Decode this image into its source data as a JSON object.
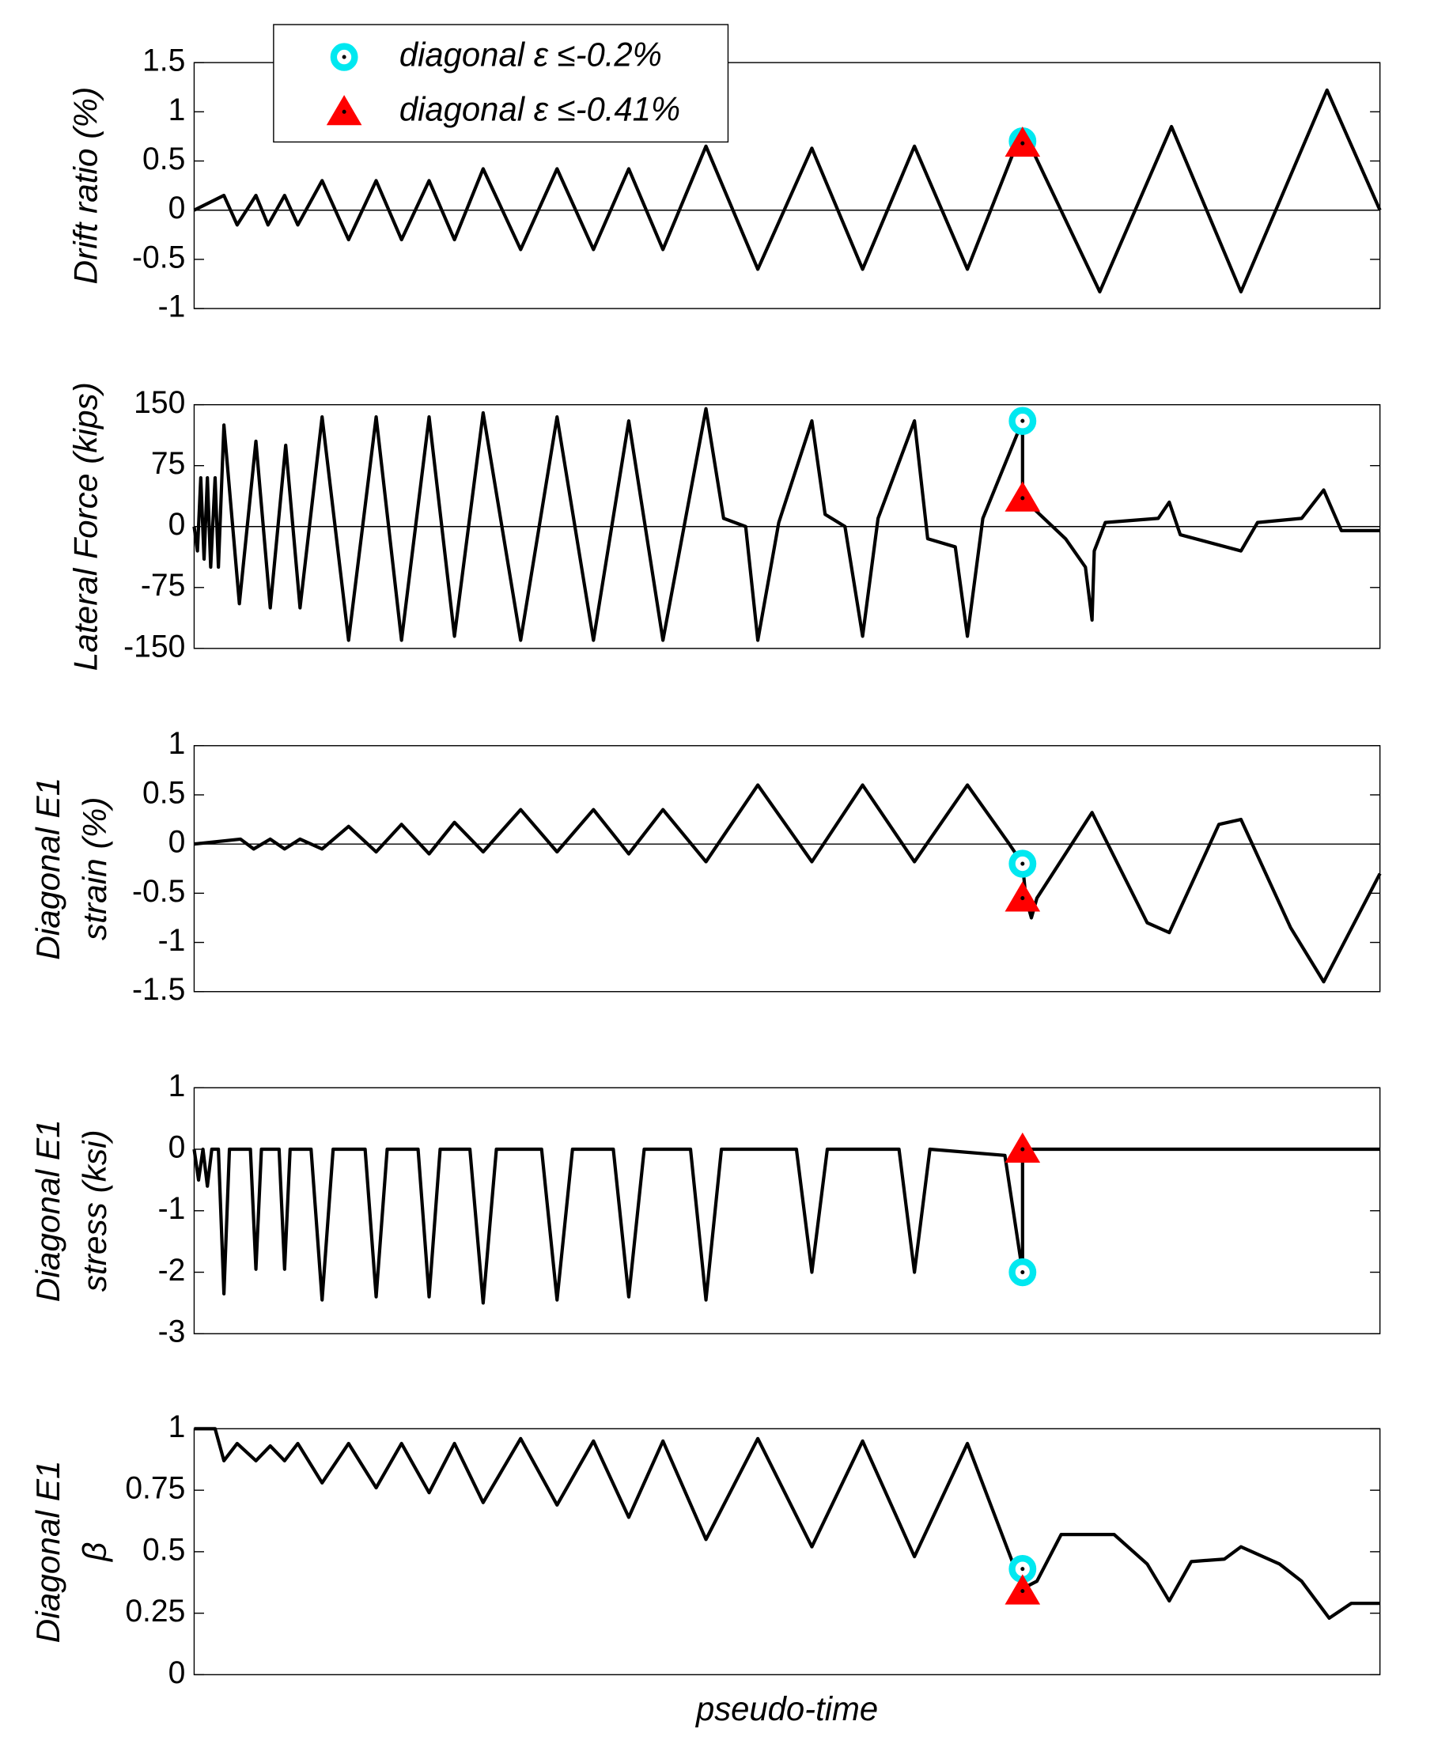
{
  "legend": [
    {
      "label": "diagonal ε ≤-0.2%",
      "marker": "circle",
      "color": "#00e8f0"
    },
    {
      "label": "diagonal ε ≤-0.41%",
      "marker": "triangle",
      "color": "#ff0000"
    }
  ],
  "chart_data": [
    {
      "type": "line",
      "ylabel": [
        "Drift ratio (%)"
      ],
      "color": "#000000",
      "zero_line": true,
      "xlim": [
        0,
        1075
      ],
      "ylim": [
        -1,
        1.5
      ],
      "yticks": [
        -1,
        -0.5,
        0,
        0.5,
        1,
        1.5
      ],
      "x": [
        0,
        27,
        39,
        56,
        67,
        82,
        94,
        116,
        140,
        165,
        188,
        213,
        236,
        262,
        296,
        329,
        362,
        394,
        425,
        464,
        511,
        560,
        606,
        653,
        701,
        751,
        821,
        886,
        949,
        1027,
        1075
      ],
      "values": [
        0,
        0.15,
        -0.15,
        0.15,
        -0.15,
        0.15,
        -0.15,
        0.3,
        -0.3,
        0.3,
        -0.3,
        0.3,
        -0.3,
        0.42,
        -0.4,
        0.42,
        -0.4,
        0.42,
        -0.4,
        0.65,
        -0.6,
        0.63,
        -0.6,
        0.65,
        -0.6,
        0.82,
        -0.83,
        0.85,
        -0.83,
        1.22,
        0
      ],
      "markers": [
        {
          "x": 751,
          "value": 0.7
        },
        {
          "x": 751,
          "value": 0.68
        }
      ]
    },
    {
      "type": "line",
      "ylabel": [
        "Lateral Force (kips)"
      ],
      "color": "#000000",
      "zero_line": true,
      "xlim": [
        0,
        1075
      ],
      "ylim": [
        -150,
        150
      ],
      "yticks": [
        -150,
        -75,
        0,
        75,
        150
      ],
      "x": [
        0,
        3,
        6,
        9,
        12,
        15,
        19,
        22,
        27,
        41,
        56,
        69,
        83,
        96,
        116,
        140,
        165,
        188,
        213,
        236,
        262,
        296,
        329,
        362,
        394,
        425,
        464,
        480,
        500,
        511,
        530,
        560,
        572,
        590,
        606,
        620,
        653,
        665,
        690,
        701,
        715,
        751,
        751,
        790,
        808,
        814,
        816,
        826,
        874,
        884,
        894,
        949,
        964,
        1004,
        1024,
        1040,
        1075
      ],
      "values": [
        0,
        -30,
        60,
        -40,
        60,
        -50,
        60,
        -50,
        125,
        -95,
        105,
        -100,
        100,
        -100,
        135,
        -140,
        135,
        -140,
        135,
        -135,
        140,
        -140,
        135,
        -140,
        130,
        -140,
        145,
        10,
        0,
        -140,
        5,
        130,
        15,
        0,
        -135,
        10,
        130,
        -15,
        -25,
        -135,
        10,
        130,
        35,
        -15,
        -50,
        -115,
        -30,
        5,
        10,
        30,
        -10,
        -30,
        5,
        10,
        45,
        -5,
        -5
      ],
      "markers": [
        {
          "x": 751,
          "value": 130
        },
        {
          "x": 751,
          "value": 35
        }
      ]
    },
    {
      "type": "line",
      "ylabel": [
        "Diagonal E1",
        "strain (%)"
      ],
      "color": "#000000",
      "zero_line": true,
      "xlim": [
        0,
        1075
      ],
      "ylim": [
        -1.5,
        1
      ],
      "yticks": [
        -1.5,
        -1,
        -0.5,
        0,
        0.5,
        1
      ],
      "x": [
        0,
        42,
        54,
        69,
        82,
        96,
        116,
        140,
        165,
        188,
        213,
        236,
        262,
        296,
        329,
        362,
        394,
        425,
        464,
        511,
        560,
        606,
        653,
        701,
        739,
        751,
        754,
        759,
        764,
        814,
        864,
        884,
        929,
        949,
        994,
        1024,
        1075
      ],
      "values": [
        0,
        0.05,
        -0.05,
        0.05,
        -0.05,
        0.05,
        -0.05,
        0.18,
        -0.08,
        0.2,
        -0.1,
        0.22,
        -0.08,
        0.35,
        -0.08,
        0.35,
        -0.1,
        0.35,
        -0.18,
        0.6,
        -0.18,
        0.6,
        -0.18,
        0.6,
        0,
        -0.2,
        -0.55,
        -0.75,
        -0.55,
        0.32,
        -0.8,
        -0.9,
        0.2,
        0.25,
        -0.85,
        -1.4,
        -0.3
      ],
      "markers": [
        {
          "x": 751,
          "value": -0.2
        },
        {
          "x": 751,
          "value": -0.55
        }
      ]
    },
    {
      "type": "line",
      "ylabel": [
        "Diagonal E1",
        "stress (ksi)"
      ],
      "color": "#000000",
      "zero_line": false,
      "xlim": [
        0,
        1075
      ],
      "ylim": [
        -3,
        1
      ],
      "yticks": [
        -3,
        -2,
        -1,
        0,
        1
      ],
      "x": [
        0,
        4,
        8,
        12,
        16,
        22,
        27,
        32,
        51,
        56,
        61,
        77,
        82,
        87,
        106,
        116,
        126,
        155,
        165,
        175,
        203,
        213,
        223,
        250,
        262,
        274,
        315,
        329,
        343,
        380,
        394,
        408,
        450,
        464,
        478,
        546,
        560,
        574,
        639,
        653,
        667,
        735,
        751,
        751,
        1075
      ],
      "values": [
        0,
        -0.5,
        0,
        -0.6,
        0,
        0,
        -2.35,
        0,
        0,
        -1.95,
        0,
        0,
        -1.95,
        0,
        0,
        -2.45,
        0,
        0,
        -2.4,
        0,
        0,
        -2.4,
        0,
        0,
        -2.5,
        0,
        0,
        -2.45,
        0,
        0,
        -2.4,
        0,
        0,
        -2.45,
        0,
        0,
        -2,
        0,
        0,
        -2,
        0,
        -0.1,
        -2,
        0,
        0
      ],
      "markers": [
        {
          "x": 751,
          "value": -2
        },
        {
          "x": 751,
          "value": 0
        }
      ]
    },
    {
      "type": "line",
      "ylabel": [
        "Diagonal E1",
        "β"
      ],
      "xlabel": "pseudo-time",
      "color": "#000000",
      "zero_line": false,
      "xlim": [
        0,
        1075
      ],
      "ylim": [
        0,
        1
      ],
      "yticks": [
        0,
        0.25,
        0.5,
        0.75,
        1
      ],
      "x": [
        0,
        19,
        27,
        39,
        56,
        69,
        82,
        94,
        116,
        140,
        165,
        188,
        213,
        236,
        262,
        296,
        329,
        362,
        394,
        425,
        464,
        511,
        560,
        606,
        653,
        701,
        751,
        764,
        786,
        834,
        864,
        884,
        904,
        934,
        949,
        984,
        1004,
        1029,
        1049,
        1075
      ],
      "values": [
        1,
        1,
        0.87,
        0.94,
        0.87,
        0.93,
        0.87,
        0.94,
        0.78,
        0.94,
        0.76,
        0.94,
        0.74,
        0.94,
        0.7,
        0.96,
        0.69,
        0.95,
        0.64,
        0.95,
        0.55,
        0.96,
        0.52,
        0.95,
        0.48,
        0.94,
        0.35,
        0.38,
        0.57,
        0.57,
        0.45,
        0.3,
        0.46,
        0.47,
        0.52,
        0.45,
        0.38,
        0.23,
        0.29,
        0.29
      ],
      "markers": [
        {
          "x": 751,
          "value": 0.43
        },
        {
          "x": 751,
          "value": 0.34
        }
      ]
    }
  ]
}
